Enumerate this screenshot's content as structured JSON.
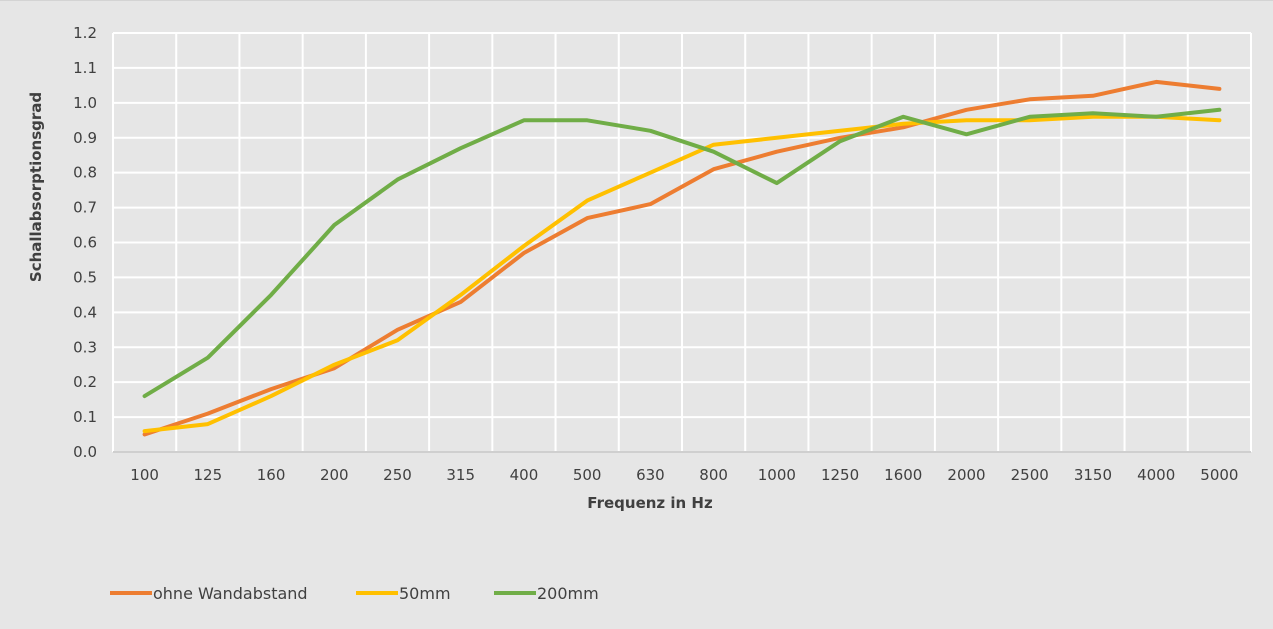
{
  "chart_data": {
    "type": "line",
    "xlabel": "Frequenz in Hz",
    "ylabel": "Schallabsorptionsgrad",
    "categories": [
      "100",
      "125",
      "160",
      "200",
      "250",
      "315",
      "400",
      "500",
      "630",
      "800",
      "1000",
      "1250",
      "1600",
      "2000",
      "2500",
      "3150",
      "4000",
      "5000"
    ],
    "ylim": [
      0,
      1.2
    ],
    "yticks": [
      "0.0",
      "0.1",
      "0.2",
      "0.3",
      "0.4",
      "0.5",
      "0.6",
      "0.7",
      "0.8",
      "0.9",
      "1.0",
      "1.1",
      "1.2"
    ],
    "grid": true,
    "legend_position": "bottom-left",
    "series": [
      {
        "name": "ohne Wandabstand",
        "color": "#ed7d31",
        "values": [
          0.05,
          0.11,
          0.18,
          0.24,
          0.35,
          0.43,
          0.57,
          0.67,
          0.71,
          0.81,
          0.86,
          0.9,
          0.93,
          0.98,
          1.01,
          1.02,
          1.06,
          1.04
        ]
      },
      {
        "name": "50mm",
        "color": "#ffc000",
        "values": [
          0.06,
          0.08,
          0.16,
          0.25,
          0.32,
          0.45,
          0.59,
          0.72,
          0.8,
          0.88,
          0.9,
          0.92,
          0.94,
          0.95,
          0.95,
          0.96,
          0.96,
          0.95
        ]
      },
      {
        "name": "200mm",
        "color": "#70ad47",
        "values": [
          0.16,
          0.27,
          0.45,
          0.65,
          0.78,
          0.87,
          0.95,
          0.95,
          0.92,
          0.86,
          0.77,
          0.89,
          0.96,
          0.91,
          0.96,
          0.97,
          0.96,
          0.98
        ]
      }
    ]
  }
}
